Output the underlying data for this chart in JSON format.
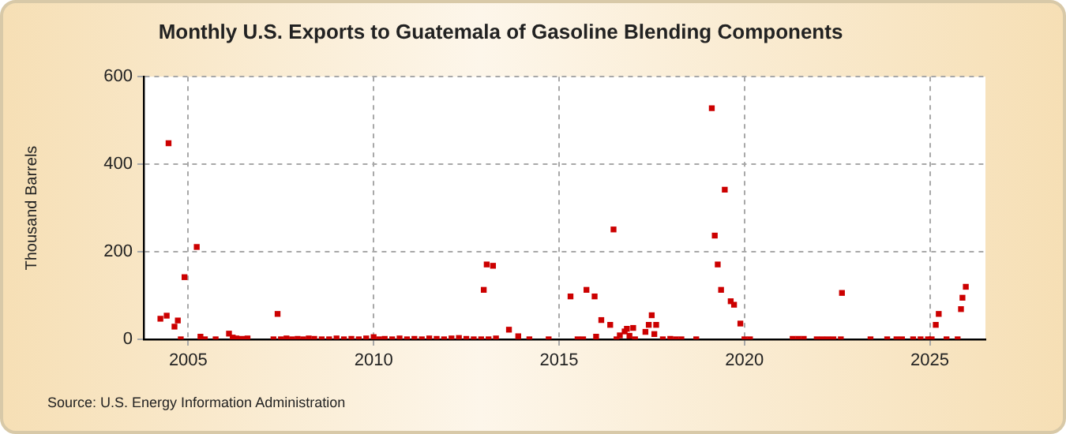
{
  "chart_data": {
    "type": "scatter",
    "title": "Monthly U.S. Exports to Guatemala of Gasoline Blending Components",
    "ylabel": "Thousand Barrels",
    "annotations": [
      "Source: U.S. Energy Information Administration"
    ],
    "xlim": [
      2003.8,
      2026.5
    ],
    "xticks": [
      2005,
      2010,
      2015,
      2020,
      2025
    ],
    "ylim": [
      0,
      600
    ],
    "yticks": [
      0,
      200,
      400,
      600
    ],
    "grid": true,
    "marker": "square",
    "series": [
      {
        "color": "#cc0000",
        "x": [
          2004.25,
          2004.42,
          2004.47,
          2004.63,
          2004.72,
          2004.8,
          2004.9,
          2005.23,
          2005.33,
          2005.45,
          2005.74,
          2006.1,
          2006.2,
          2006.3,
          2006.45,
          2006.6,
          2007.3,
          2007.41,
          2007.5,
          2007.65,
          2007.8,
          2007.95,
          2008.1,
          2008.25,
          2008.4,
          2008.6,
          2008.8,
          2009.0,
          2009.2,
          2009.4,
          2009.6,
          2009.8,
          2010.0,
          2010.15,
          2010.3,
          2010.5,
          2010.7,
          2010.9,
          2011.1,
          2011.3,
          2011.5,
          2011.7,
          2011.9,
          2012.1,
          2012.3,
          2012.5,
          2012.7,
          2012.9,
          2012.97,
          2013.05,
          2013.1,
          2013.22,
          2013.3,
          2013.65,
          2013.9,
          2014.2,
          2014.72,
          2015.31,
          2015.5,
          2015.65,
          2015.74,
          2015.96,
          2016.0,
          2016.14,
          2016.38,
          2016.47,
          2016.55,
          2016.64,
          2016.77,
          2016.83,
          2016.9,
          2017.0,
          2017.05,
          2017.33,
          2017.42,
          2017.5,
          2017.57,
          2017.62,
          2017.8,
          2018.0,
          2018.15,
          2018.3,
          2018.7,
          2019.12,
          2019.2,
          2019.28,
          2019.37,
          2019.47,
          2019.63,
          2019.72,
          2019.89,
          2020.0,
          2020.15,
          2021.3,
          2021.45,
          2021.6,
          2021.95,
          2022.1,
          2022.25,
          2022.4,
          2022.6,
          2022.63,
          2023.4,
          2023.85,
          2024.1,
          2024.25,
          2024.55,
          2024.75,
          2024.95,
          2025.05,
          2025.16,
          2025.24,
          2025.45,
          2025.75,
          2025.84,
          2025.88,
          2025.97
        ],
        "values": [
          47,
          54,
          448,
          29,
          43,
          0,
          142,
          211,
          6,
          0,
          0,
          13,
          4,
          2,
          1,
          2,
          0,
          58,
          0,
          2,
          0,
          1,
          0,
          2,
          1,
          0,
          0,
          2,
          0,
          1,
          0,
          2,
          5,
          0,
          1,
          0,
          2,
          0,
          1,
          0,
          2,
          1,
          0,
          2,
          3,
          1,
          0,
          0,
          113,
          171,
          0,
          168,
          2,
          22,
          7,
          0,
          0,
          98,
          0,
          0,
          113,
          98,
          6,
          44,
          33,
          251,
          0,
          9,
          18,
          24,
          8,
          26,
          0,
          17,
          33,
          55,
          12,
          33,
          0,
          1,
          0,
          0,
          0,
          528,
          237,
          171,
          113,
          342,
          87,
          79,
          36,
          0,
          0,
          1,
          1,
          1,
          0,
          0,
          0,
          0,
          0,
          106,
          0,
          0,
          0,
          0,
          0,
          0,
          0,
          0,
          33,
          58,
          0,
          0,
          69,
          95,
          120
        ]
      }
    ]
  }
}
